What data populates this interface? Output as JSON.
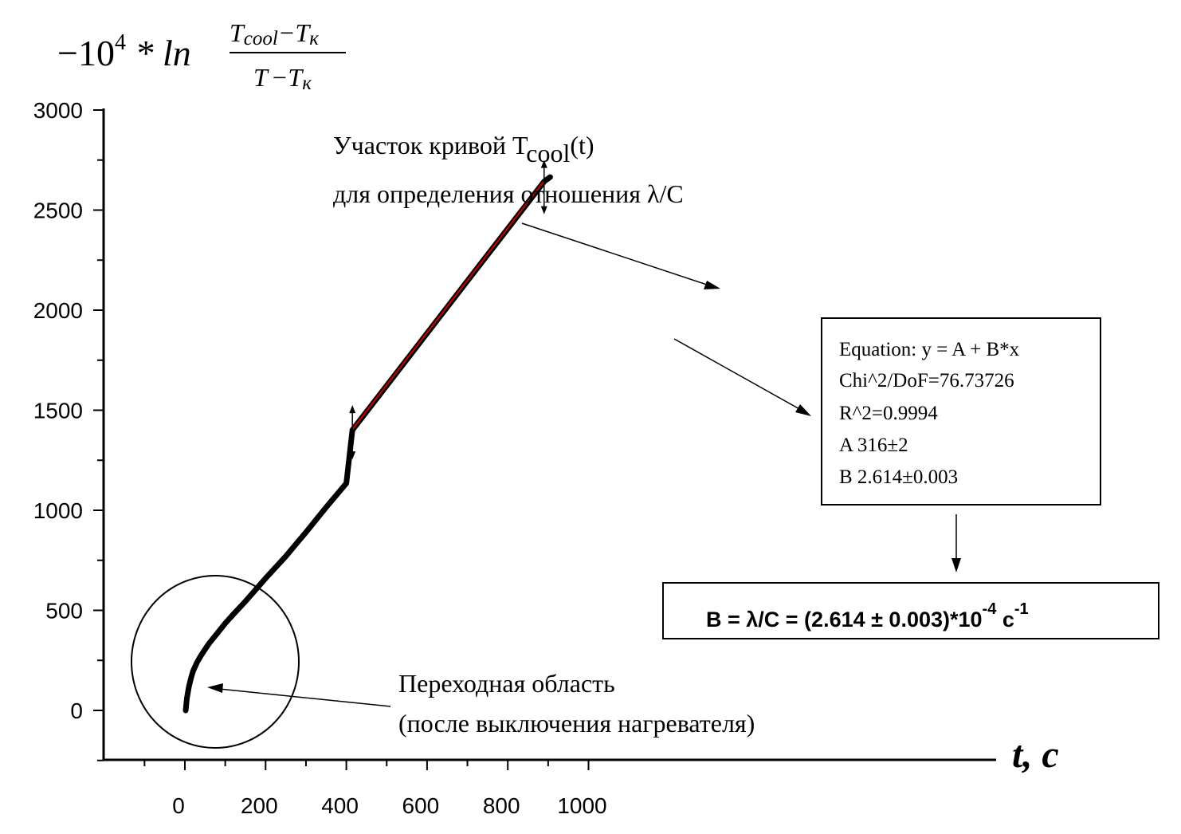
{
  "chart_data": {
    "type": "scatter",
    "ylabel": {
      "prefix": "−10",
      "exponent": "4",
      "operator": " * ln",
      "numerator": "T_cool − T_к",
      "numerator_parts": [
        "T",
        "cool",
        "−T",
        "к"
      ],
      "denominator_parts": [
        "T",
        "−T",
        "к"
      ]
    },
    "xlabel": "t, c",
    "xlim": [
      -100,
      1000
    ],
    "ylim": [
      -250,
      3000
    ],
    "x_ticks": [
      0,
      200,
      400,
      600,
      800,
      1000
    ],
    "y_ticks": [
      0,
      500,
      1000,
      1500,
      2000,
      2500,
      3000
    ],
    "x_tick_labels": [
      "0",
      "200",
      "400",
      "600",
      "800",
      "1000"
    ],
    "y_tick_labels": [
      "0",
      "500",
      "1000",
      "1500",
      "2000",
      "2500",
      "3000"
    ],
    "series": [
      {
        "kind": "measured",
        "color": "#000000",
        "points": [
          [
            2,
            0
          ],
          [
            5,
            60
          ],
          [
            10,
            120
          ],
          [
            15,
            160
          ],
          [
            20,
            195
          ],
          [
            30,
            240
          ],
          [
            40,
            275
          ],
          [
            50,
            305
          ],
          [
            60,
            335
          ],
          [
            80,
            385
          ],
          [
            100,
            435
          ],
          [
            120,
            480
          ],
          [
            150,
            545
          ],
          [
            200,
            660
          ],
          [
            250,
            770
          ],
          [
            300,
            890
          ],
          [
            350,
            1015
          ],
          [
            400,
            1135
          ],
          [
            415,
            1380
          ]
        ],
        "curve_x_end": 905,
        "curve_y_end": 2665
      },
      {
        "kind": "fit",
        "color": "#cc0000",
        "x_range": [
          415,
          890
        ],
        "A": 316,
        "B": 2.614
      }
    ],
    "fit_range_markers": [
      {
        "x": 415,
        "y": 1390
      },
      {
        "x": 890,
        "y": 2615
      }
    ],
    "annotations": {
      "segment_line1": "Участок кривой T",
      "segment_sub": "cool",
      "segment_line1_tail": "(t)",
      "segment_line2": "для определения отношения λ/C",
      "transition_line1": "Переходная область",
      "transition_line2": "(после выключения нагревателя)"
    },
    "fit_box": {
      "lines": [
        "Equation: y = A + B*x",
        "Chi^2/DoF=76.73726",
        "R^2=0.9994",
        "A  316±2",
        "B  2.614±0.003"
      ]
    },
    "result_box": {
      "main": "B = λ/C = (2.614 ± 0.003)*10",
      "exp": "-4",
      "unit": " c",
      "unit_exp": "-1"
    }
  }
}
